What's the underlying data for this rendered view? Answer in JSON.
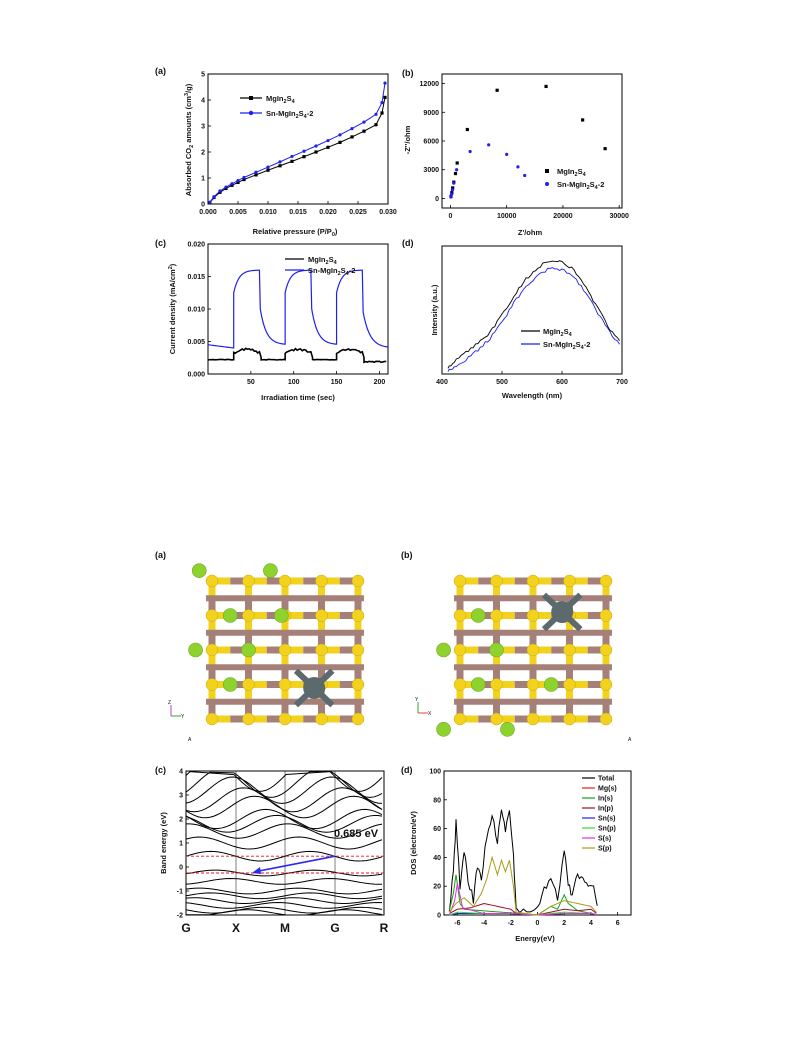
{
  "fig1": {
    "a": {
      "label": "(a)",
      "xlabel": "Relative pressure (P/P",
      "xlabel_sub": "0",
      "xlabel_end": ")",
      "ylabel": "Absorbed CO",
      "ylabel_sub": "2",
      "ylabel_mid": " amounts (cm",
      "ylabel_sup": "3",
      "ylabel_end": "/g)",
      "legend": [
        {
          "base": "MgIn",
          "s1": "2",
          "mid": "S",
          "s2": "4",
          "tail": ""
        },
        {
          "base": "Sn-MgIn",
          "s1": "2",
          "mid": "S",
          "s2": "4",
          "tail": "-2"
        }
      ],
      "xticks": [
        "0.000",
        "0.005",
        "0.010",
        "0.015",
        "0.020",
        "0.025",
        "0.030"
      ],
      "yticks": [
        "0",
        "1",
        "2",
        "3",
        "4",
        "5"
      ]
    },
    "b": {
      "label": "(b)",
      "xlabel": "Z'/ohm",
      "ylabel": "-Z''/ohm",
      "legend": [
        {
          "base": "MgIn",
          "s1": "2",
          "mid": "S",
          "s2": "4",
          "tail": ""
        },
        {
          "base": "Sn-MgIn",
          "s1": "2",
          "mid": "S",
          "s2": "4",
          "tail": "-2"
        }
      ],
      "xticks": [
        "0",
        "10000",
        "20000",
        "30000"
      ],
      "yticks": [
        "0",
        "3000",
        "6000",
        "9000",
        "12000"
      ]
    },
    "c": {
      "label": "(c)",
      "xlabel": "Irradiation time (sec)",
      "ylabel": "Current density (mA/cm",
      "ylabel_sup": "2",
      "ylabel_end": ")",
      "legend": [
        {
          "base": "MgIn",
          "s1": "2",
          "mid": "S",
          "s2": "4",
          "tail": ""
        },
        {
          "base": "Sn-MgIn",
          "s1": "2",
          "mid": "S",
          "s2": "4",
          "tail": "-2"
        }
      ],
      "xticks": [
        "50",
        "100",
        "150",
        "200"
      ],
      "yticks": [
        "0.000",
        "0.005",
        "0.010",
        "0.015",
        "0.020"
      ]
    },
    "d": {
      "label": "(d)",
      "xlabel": "Wavelength (nm)",
      "ylabel": "Intensity (a.u.)",
      "legend": [
        {
          "base": "MgIn",
          "s1": "2",
          "mid": "S",
          "s2": "4",
          "tail": ""
        },
        {
          "base": "Sn-MgIn",
          "s1": "2",
          "mid": "S",
          "s2": "4",
          "tail": "-2"
        }
      ],
      "xticks": [
        "400",
        "500",
        "600",
        "700"
      ]
    }
  },
  "fig2": {
    "a": {
      "label": "(a)",
      "axis_z": "Z",
      "axis_y": "Y",
      "corner": "A"
    },
    "b": {
      "label": "(b)",
      "axis_y": "Y",
      "axis_x": "X",
      "corner": "A"
    },
    "c": {
      "label": "(c)",
      "ylabel": "Band energy (eV)",
      "kpoints": [
        "G",
        "X",
        "M",
        "G",
        "R"
      ],
      "yticks": [
        "4",
        "3",
        "2",
        "1",
        "0",
        "-1",
        "-2"
      ],
      "gap_label": "0.685 eV"
    },
    "d": {
      "label": "(d)",
      "ylabel": "DOS (electron/eV)",
      "xlabel": "Energy(eV)",
      "xticks": [
        "-6",
        "-4",
        "-2",
        "0",
        "2",
        "4",
        "6"
      ],
      "yticks": [
        "0",
        "20",
        "40",
        "60",
        "80",
        "100"
      ],
      "legend": [
        "Total",
        "Mg(s)",
        "In(s)",
        "In(p)",
        "Sn(s)",
        "Sn(p)",
        "S(s)",
        "S(p)"
      ]
    }
  },
  "colors": {
    "mgin": "#000000",
    "sn": "#1f1ff0",
    "dashed": "#e8141c",
    "arrow": "#2a2af0",
    "sulfur": "#f2d21c",
    "indium": "#a48078",
    "mg": "#8ed22e",
    "tin": "#5c6a6e",
    "dos": [
      "#000000",
      "#e81c1c",
      "#18a018",
      "#9a1028",
      "#2020e8",
      "#30e030",
      "#e030e0",
      "#a69c18"
    ]
  },
  "chart_data": [
    {
      "type": "line",
      "panel": "fig1-a",
      "xlabel": "Relative pressure (P/P0)",
      "ylabel": "Absorbed CO2 amounts (cm3/g)",
      "xlim": [
        0,
        0.03
      ],
      "ylim": [
        0,
        5
      ],
      "series": [
        {
          "name": "MgIn2S4",
          "x": [
            0.0003,
            0.001,
            0.002,
            0.003,
            0.004,
            0.005,
            0.006,
            0.008,
            0.01,
            0.012,
            0.014,
            0.016,
            0.018,
            0.02,
            0.022,
            0.024,
            0.026,
            0.028,
            0.029,
            0.0295
          ],
          "y": [
            0.05,
            0.25,
            0.45,
            0.6,
            0.72,
            0.83,
            0.94,
            1.12,
            1.3,
            1.47,
            1.64,
            1.82,
            2.0,
            2.18,
            2.37,
            2.58,
            2.8,
            3.05,
            3.5,
            4.1
          ]
        },
        {
          "name": "Sn-MgIn2S4-2",
          "x": [
            0.0003,
            0.001,
            0.002,
            0.003,
            0.004,
            0.005,
            0.006,
            0.008,
            0.01,
            0.012,
            0.014,
            0.016,
            0.018,
            0.02,
            0.022,
            0.024,
            0.026,
            0.028,
            0.029,
            0.0295
          ],
          "y": [
            0.07,
            0.28,
            0.5,
            0.65,
            0.78,
            0.9,
            1.02,
            1.22,
            1.42,
            1.62,
            1.83,
            2.03,
            2.23,
            2.44,
            2.66,
            2.9,
            3.15,
            3.45,
            3.9,
            4.65
          ]
        }
      ]
    },
    {
      "type": "scatter",
      "panel": "fig1-b",
      "xlabel": "Z'/ohm",
      "ylabel": "-Z''/ohm",
      "xlim": [
        0,
        30000
      ],
      "ylim": [
        0,
        12000
      ],
      "series": [
        {
          "name": "MgIn2S4",
          "x": [
            100,
            250,
            400,
            600,
            900,
            1200,
            3000,
            8300,
            17000,
            23500,
            27500
          ],
          "y": [
            200,
            600,
            1100,
            1700,
            2600,
            3700,
            7200,
            11300,
            11700,
            8200,
            5200
          ]
        },
        {
          "name": "Sn-MgIn2S4-2",
          "x": [
            80,
            200,
            350,
            600,
            1100,
            3500,
            6800,
            10000,
            12000,
            13200
          ],
          "y": [
            150,
            450,
            900,
            1600,
            3000,
            4900,
            5600,
            4600,
            3300,
            2400
          ]
        }
      ]
    },
    {
      "type": "line",
      "panel": "fig1-c",
      "xlabel": "Irradiation time (sec)",
      "ylabel": "Current density (mA/cm2)",
      "xlim": [
        0,
        210
      ],
      "ylim": [
        0,
        0.02
      ],
      "series": [
        {
          "name": "MgIn2S4",
          "dark": 0.0022,
          "light": 0.0038
        },
        {
          "name": "Sn-MgIn2S4-2",
          "dark_start": 0.0045,
          "dark_end": 0.004,
          "light_start": 0.0125,
          "light_peak": 0.016
        },
        {
          "name": "on_off_seconds",
          "on": [
            30,
            90,
            150
          ],
          "off": [
            60,
            120,
            180
          ]
        }
      ]
    },
    {
      "type": "line",
      "panel": "fig1-d",
      "xlabel": "Wavelength (nm)",
      "ylabel": "Intensity (a.u.)",
      "xlim": [
        400,
        700
      ],
      "series": [
        {
          "name": "MgIn2S4",
          "x": [
            410,
            420,
            440,
            460,
            480,
            500,
            520,
            540,
            560,
            580,
            600,
            620,
            640,
            660,
            680,
            700
          ],
          "y": [
            0.05,
            0.1,
            0.18,
            0.26,
            0.35,
            0.5,
            0.66,
            0.8,
            0.9,
            0.96,
            0.95,
            0.88,
            0.73,
            0.55,
            0.38,
            0.25
          ]
        },
        {
          "name": "Sn-MgIn2S4-2",
          "x": [
            410,
            420,
            440,
            460,
            480,
            500,
            520,
            540,
            560,
            580,
            600,
            620,
            640,
            660,
            680,
            700
          ],
          "y": [
            0.02,
            0.06,
            0.12,
            0.2,
            0.3,
            0.44,
            0.6,
            0.74,
            0.84,
            0.89,
            0.88,
            0.82,
            0.68,
            0.51,
            0.35,
            0.22
          ]
        }
      ]
    },
    {
      "type": "line",
      "panel": "fig2-c",
      "ylabel": "Band energy (eV)",
      "ylim": [
        -2,
        4
      ],
      "categories": [
        "G",
        "X",
        "M",
        "G",
        "R"
      ],
      "gap_eV": 0.685,
      "vbm_eV": -0.25,
      "cbm_eV": 0.45
    },
    {
      "type": "area",
      "panel": "fig2-d",
      "xlabel": "Energy(eV)",
      "ylabel": "DOS (electron/eV)",
      "xlim": [
        -7,
        7
      ],
      "ylim": [
        0,
        100
      ],
      "series": [
        {
          "name": "Total",
          "x": [
            -6.6,
            -6.3,
            -6.1,
            -5.8,
            -5.5,
            -5.2,
            -4.8,
            -4.5,
            -4.2,
            -3.8,
            -3.4,
            -3.0,
            -2.7,
            -2.4,
            -2.1,
            -1.8,
            -1.6,
            -0.8,
            0,
            0.5,
            1.0,
            1.5,
            2.0,
            2.3,
            2.6,
            3.0,
            3.4,
            3.8,
            4.2,
            4.6
          ],
          "y": [
            5,
            30,
            65,
            20,
            45,
            25,
            10,
            35,
            25,
            55,
            70,
            50,
            75,
            60,
            70,
            40,
            5,
            0,
            5,
            18,
            25,
            12,
            45,
            20,
            15,
            30,
            25,
            20,
            18,
            5
          ]
        },
        {
          "name": "Mg(s)",
          "x": [
            -6.6,
            -6,
            -4,
            -2,
            0,
            2,
            4,
            4.6
          ],
          "y": [
            0,
            1,
            1,
            1,
            0,
            1,
            1,
            0
          ]
        },
        {
          "name": "In(s)",
          "x": [
            -6.6,
            -6.3,
            -6.1,
            -5.8,
            -5.5,
            0,
            0.5,
            1,
            1.5,
            2,
            2.3,
            2.6,
            3,
            4.6
          ],
          "y": [
            3,
            15,
            28,
            8,
            4,
            0,
            3,
            6,
            4,
            14,
            8,
            6,
            3,
            0
          ]
        },
        {
          "name": "In(p)",
          "x": [
            -6.6,
            -6,
            -5,
            -4,
            -3,
            -2,
            -1.6,
            0,
            1,
            2,
            3,
            4,
            4.6
          ],
          "y": [
            1,
            4,
            5,
            8,
            6,
            4,
            1,
            0,
            2,
            4,
            3,
            4,
            0
          ]
        },
        {
          "name": "Sn(s)",
          "x": [
            -6.6,
            -6,
            -4,
            -2,
            0,
            2,
            4,
            4.6
          ],
          "y": [
            0,
            1,
            1,
            1,
            0,
            1,
            1,
            0
          ]
        },
        {
          "name": "Sn(p)",
          "x": [
            -6.6,
            -6,
            -4,
            -2,
            0,
            2,
            4,
            4.6
          ],
          "y": [
            0,
            2,
            1,
            1,
            0,
            2,
            1,
            0
          ]
        },
        {
          "name": "S(s)",
          "x": [
            -6.6,
            -6.2,
            -6,
            -5.6,
            -4,
            -2,
            0,
            2,
            4,
            4.6
          ],
          "y": [
            0,
            10,
            22,
            5,
            1,
            1,
            0,
            1,
            1,
            0
          ]
        },
        {
          "name": "S(p)",
          "x": [
            -6.6,
            -6.1,
            -5.5,
            -4.8,
            -4.2,
            -3.8,
            -3.4,
            -3.0,
            -2.7,
            -2.4,
            -2.1,
            -1.8,
            -1.6,
            0,
            1,
            2,
            3,
            4,
            4.6
          ],
          "y": [
            2,
            8,
            12,
            6,
            15,
            25,
            40,
            28,
            38,
            30,
            38,
            20,
            2,
            0,
            6,
            10,
            8,
            6,
            0
          ]
        }
      ]
    }
  ]
}
